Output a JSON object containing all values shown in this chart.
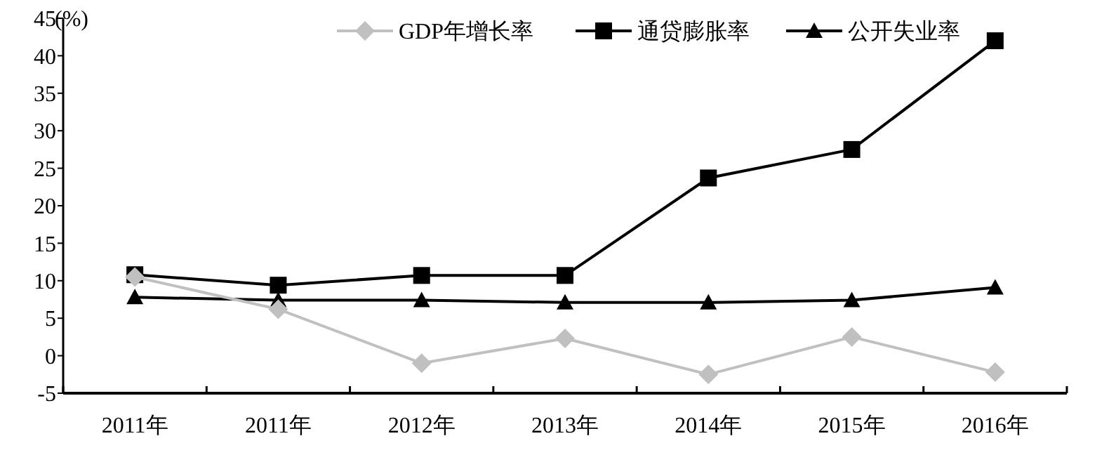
{
  "chart_data": {
    "type": "line",
    "ylabel": "(%)",
    "categories": [
      "2011年",
      "2011年",
      "2012年",
      "2013年",
      "2014年",
      "2015年",
      "2016年"
    ],
    "ylim": [
      -5,
      45
    ],
    "yticks": [
      -5,
      0,
      5,
      10,
      15,
      20,
      25,
      30,
      35,
      40,
      45
    ],
    "grid": false,
    "legend": "top",
    "series": [
      {
        "name": "GDP年增长率",
        "color": "#c0c0c0",
        "marker": "diamond",
        "values": [
          10.5,
          6.2,
          -1,
          2.3,
          -2.5,
          2.5,
          -2.2
        ]
      },
      {
        "name": "通贷膨胀率",
        "color": "#000000",
        "marker": "square",
        "values": [
          10.8,
          9.4,
          10.7,
          10.7,
          23.7,
          27.5,
          42
        ]
      },
      {
        "name": "公开失业率",
        "color": "#000000",
        "marker": "triangle",
        "values": [
          7.8,
          7.4,
          7.4,
          7.1,
          7.1,
          7.4,
          9.1
        ]
      }
    ]
  }
}
